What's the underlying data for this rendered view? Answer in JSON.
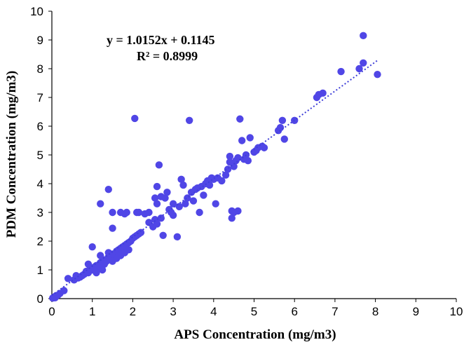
{
  "chart_data": {
    "type": "scatter",
    "xlabel": "APS Concentration  (mg/m3)",
    "ylabel": "PDM Concentration  (mg/m3)",
    "xlim": [
      0,
      10
    ],
    "ylim": [
      0,
      10
    ],
    "xticks": [
      "0",
      "1",
      "2",
      "3",
      "4",
      "5",
      "6",
      "7",
      "8",
      "9",
      "10"
    ],
    "yticks": [
      "0",
      "1",
      "2",
      "3",
      "4",
      "5",
      "6",
      "7",
      "8",
      "9",
      "10"
    ],
    "grid": false,
    "legend": "none",
    "marker_color": "#5046E6",
    "trendline_color": "#3F3FD8",
    "trendline": {
      "equation": "y = 1.0152x + 0.1145",
      "r_squared": "R² = 0.8999",
      "slope": 1.0152,
      "intercept": 0.1145,
      "x_range": [
        0,
        8.05
      ]
    },
    "points": [
      [
        0.02,
        0.02
      ],
      [
        0.05,
        0.05
      ],
      [
        0.08,
        0.03
      ],
      [
        0.1,
        0.1
      ],
      [
        0.15,
        0.12
      ],
      [
        0.2,
        0.18
      ],
      [
        0.3,
        0.28
      ],
      [
        0.4,
        0.7
      ],
      [
        0.55,
        0.65
      ],
      [
        0.6,
        0.8
      ],
      [
        0.65,
        0.72
      ],
      [
        0.7,
        0.75
      ],
      [
        0.75,
        0.8
      ],
      [
        0.8,
        0.85
      ],
      [
        0.85,
        0.95
      ],
      [
        0.9,
        0.9
      ],
      [
        0.95,
        1.05
      ],
      [
        1.0,
        1.0
      ],
      [
        1.05,
        1.1
      ],
      [
        1.1,
        1.15
      ],
      [
        1.15,
        1.1
      ],
      [
        1.2,
        1.25
      ],
      [
        1.25,
        1.3
      ],
      [
        1.3,
        1.35
      ],
      [
        1.35,
        1.3
      ],
      [
        1.4,
        1.45
      ],
      [
        1.45,
        1.5
      ],
      [
        1.5,
        1.55
      ],
      [
        1.55,
        1.5
      ],
      [
        1.6,
        1.65
      ],
      [
        1.65,
        1.7
      ],
      [
        1.7,
        1.75
      ],
      [
        1.75,
        1.8
      ],
      [
        1.8,
        1.85
      ],
      [
        1.85,
        1.9
      ],
      [
        1.9,
        1.95
      ],
      [
        1.95,
        2.0
      ],
      [
        2.0,
        2.1
      ],
      [
        2.05,
        2.15
      ],
      [
        2.1,
        2.2
      ],
      [
        2.15,
        2.25
      ],
      [
        2.2,
        2.3
      ],
      [
        1.0,
        1.8
      ],
      [
        1.2,
        1.5
      ],
      [
        1.3,
        1.2
      ],
      [
        1.4,
        1.6
      ],
      [
        1.6,
        1.4
      ],
      [
        1.7,
        1.5
      ],
      [
        0.9,
        1.2
      ],
      [
        1.1,
        0.9
      ],
      [
        1.25,
        1.0
      ],
      [
        1.5,
        1.3
      ],
      [
        1.8,
        1.6
      ],
      [
        1.9,
        1.7
      ],
      [
        1.2,
        3.3
      ],
      [
        1.4,
        3.8
      ],
      [
        1.5,
        3.0
      ],
      [
        1.5,
        2.45
      ],
      [
        1.7,
        3.0
      ],
      [
        1.8,
        2.95
      ],
      [
        1.85,
        3.0
      ],
      [
        2.1,
        3.0
      ],
      [
        2.15,
        3.0
      ],
      [
        2.3,
        2.95
      ],
      [
        2.4,
        3.0
      ],
      [
        2.05,
        6.27
      ],
      [
        2.4,
        2.65
      ],
      [
        2.5,
        2.5
      ],
      [
        2.55,
        2.75
      ],
      [
        2.6,
        2.6
      ],
      [
        2.7,
        2.8
      ],
      [
        2.75,
        2.2
      ],
      [
        2.55,
        3.5
      ],
      [
        2.6,
        3.3
      ],
      [
        2.6,
        3.9
      ],
      [
        2.65,
        4.65
      ],
      [
        2.7,
        3.55
      ],
      [
        2.8,
        3.5
      ],
      [
        2.85,
        3.7
      ],
      [
        2.9,
        3.1
      ],
      [
        2.95,
        3.0
      ],
      [
        3.0,
        2.9
      ],
      [
        3.0,
        3.3
      ],
      [
        3.1,
        2.15
      ],
      [
        3.15,
        3.2
      ],
      [
        3.2,
        4.15
      ],
      [
        3.25,
        3.95
      ],
      [
        3.3,
        3.3
      ],
      [
        3.35,
        3.5
      ],
      [
        3.4,
        6.2
      ],
      [
        3.45,
        3.7
      ],
      [
        3.5,
        3.4
      ],
      [
        3.55,
        3.8
      ],
      [
        3.6,
        3.85
      ],
      [
        3.65,
        3.0
      ],
      [
        3.7,
        3.9
      ],
      [
        3.75,
        3.6
      ],
      [
        3.8,
        4.0
      ],
      [
        3.85,
        4.1
      ],
      [
        3.9,
        3.95
      ],
      [
        3.95,
        4.2
      ],
      [
        4.0,
        4.15
      ],
      [
        4.05,
        3.3
      ],
      [
        4.1,
        4.2
      ],
      [
        4.2,
        4.1
      ],
      [
        4.3,
        4.3
      ],
      [
        4.35,
        4.5
      ],
      [
        4.4,
        4.75
      ],
      [
        4.45,
        3.05
      ],
      [
        4.5,
        4.6
      ],
      [
        4.55,
        4.8
      ],
      [
        4.6,
        4.9
      ],
      [
        4.6,
        3.05
      ],
      [
        4.65,
        6.25
      ],
      [
        4.7,
        5.5
      ],
      [
        4.75,
        4.85
      ],
      [
        4.8,
        5.0
      ],
      [
        4.85,
        4.8
      ],
      [
        4.9,
        5.6
      ],
      [
        4.45,
        2.8
      ],
      [
        4.5,
        3.0
      ],
      [
        4.4,
        4.95
      ],
      [
        5.0,
        5.1
      ],
      [
        5.05,
        5.15
      ],
      [
        5.1,
        5.25
      ],
      [
        5.2,
        5.3
      ],
      [
        5.25,
        5.25
      ],
      [
        5.6,
        5.85
      ],
      [
        5.65,
        5.95
      ],
      [
        5.7,
        6.2
      ],
      [
        5.75,
        5.55
      ],
      [
        6.0,
        6.2
      ],
      [
        6.55,
        7.0
      ],
      [
        6.6,
        7.1
      ],
      [
        6.7,
        7.15
      ],
      [
        7.15,
        7.9
      ],
      [
        7.6,
        8.0
      ],
      [
        7.7,
        8.2
      ],
      [
        7.7,
        9.15
      ],
      [
        8.05,
        7.8
      ]
    ]
  }
}
